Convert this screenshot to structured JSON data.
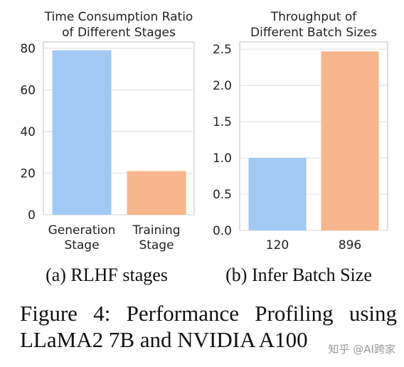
{
  "chart_data": [
    {
      "type": "bar",
      "title_lines": [
        "Time Consumption Ratio",
        "of Different Stages"
      ],
      "categories": [
        [
          "Generation",
          "Stage"
        ],
        [
          "Training",
          "Stage"
        ]
      ],
      "values": [
        79,
        21
      ],
      "yticks": [
        "0",
        "20",
        "40",
        "60",
        "80"
      ],
      "ylim": [
        0,
        83
      ],
      "colors": [
        "#a1c9f4",
        "#f8b68c"
      ],
      "grid": "horizontal",
      "subcaption": "(a) RLHF stages"
    },
    {
      "type": "bar",
      "title_lines": [
        "Throughput of",
        "Different Batch Sizes"
      ],
      "categories": [
        [
          "120"
        ],
        [
          "896"
        ]
      ],
      "values": [
        1.0,
        2.47
      ],
      "yticks": [
        "0.0",
        "0.5",
        "1.0",
        "1.5",
        "2.0",
        "2.5"
      ],
      "ylim": [
        0,
        2.6
      ],
      "colors": [
        "#a1c9f4",
        "#f8b68c"
      ],
      "grid": "horizontal",
      "subcaption": "(b) Infer Batch Size"
    }
  ],
  "caption": {
    "line1": "Figure 4:  Performance Profiling using",
    "line2": "LLaMA2 7B and NVIDIA A100"
  },
  "watermark": "知乎 @AI跨家"
}
